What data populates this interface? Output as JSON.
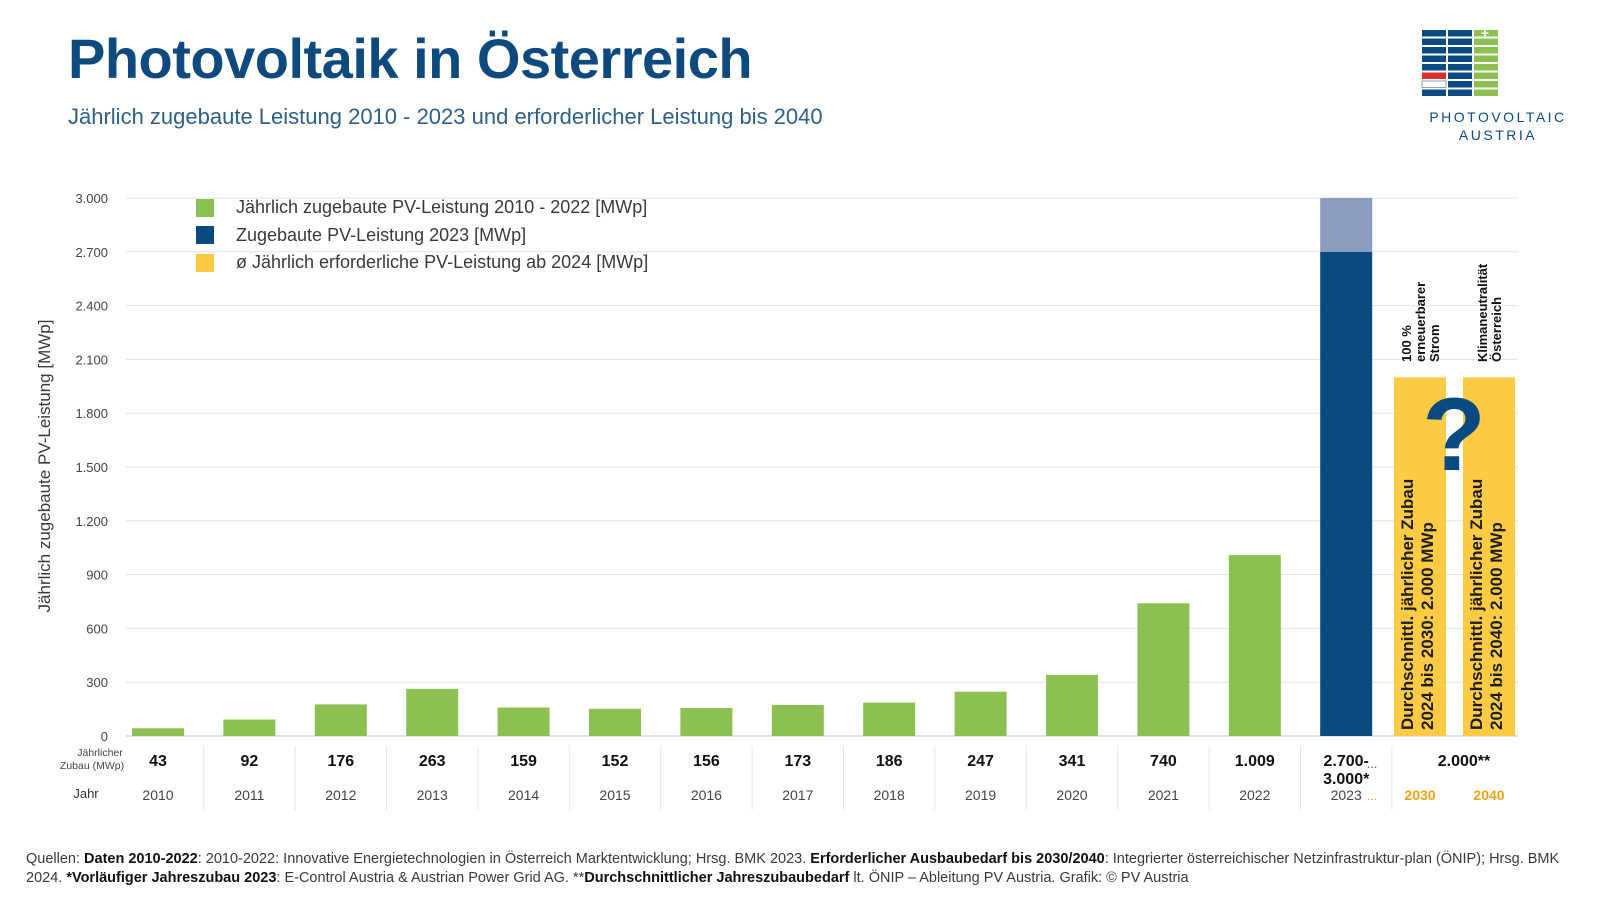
{
  "header": {
    "title": "Photovoltaik in Österreich",
    "subtitle": "Jährlich zugebaute Leistung 2010 - 2023 und erforderlicher Leistung bis 2040"
  },
  "logo": {
    "line1": "PHOTOVOLTAIC",
    "line2": "AUSTRIA"
  },
  "colors": {
    "green": "#8cc152",
    "navy": "#0b4a80",
    "navy_light": "#8a9dc0",
    "yellow": "#ffcb45",
    "grid": "#e3e3e3",
    "highlight_year": "#e8a317"
  },
  "legend": [
    {
      "label": "Jährlich zugebaute PV-Leistung 2010 - 2022 [MWp]",
      "color": "#8cc152"
    },
    {
      "label": "Zugebaute PV-Leistung 2023 [MWp]",
      "color": "#0b4a80"
    },
    {
      "label": "ø Jährlich erforderliche PV-Leistung ab 2024 [MWp]",
      "color": "#ffcb45"
    }
  ],
  "chart_data": {
    "type": "bar",
    "ylabel": "Jährlich zugebaute PV-Leistung [MWp]",
    "ylim": [
      0,
      3000
    ],
    "yticks": [
      0,
      300,
      600,
      900,
      1200,
      1500,
      1800,
      2100,
      2400,
      2700,
      3000
    ],
    "ytick_labels": [
      "0",
      "300",
      "600",
      "900",
      "1.200",
      "1.500",
      "1.800",
      "2.100",
      "2.400",
      "2.700",
      "3.000"
    ],
    "row_label_zubau": [
      "Jährlicher",
      "Zubau (MWp)"
    ],
    "row_label_jahr": "Jahr",
    "categories": [
      "2010",
      "2011",
      "2012",
      "2013",
      "2014",
      "2015",
      "2016",
      "2017",
      "2018",
      "2019",
      "2020",
      "2021",
      "2022"
    ],
    "values": [
      43,
      92,
      176,
      263,
      159,
      152,
      156,
      173,
      186,
      247,
      341,
      740,
      1009
    ],
    "value_labels": [
      "43",
      "92",
      "176",
      "263",
      "159",
      "152",
      "156",
      "173",
      "186",
      "247",
      "341",
      "740",
      "1.009"
    ],
    "bar_2023": {
      "category": "2023",
      "low": 2700,
      "high": 3000,
      "label_line1": "2.700-",
      "label_line2": "3.000*"
    },
    "ellipsis": "...",
    "required": {
      "value": 2000,
      "value_label": "2.000**",
      "bars": [
        {
          "year": "2030",
          "top_label": [
            "100 %",
            "erneuerbarer",
            "Strom"
          ],
          "inner_label": [
            "Durchschnittl. jährlicher Zubau",
            "2024 bis 2030: 2.000 MWp"
          ]
        },
        {
          "year": "2040",
          "top_label": [
            "Klimaneutralität",
            "Österreich"
          ],
          "inner_label": [
            "Durchschnittl. jährlicher Zubau",
            "2024 bis 2040: 2.000 MWp"
          ]
        }
      ],
      "question_mark": "?"
    }
  },
  "sources": {
    "s1a": "Quellen: ",
    "s1b": "Daten 2010-2022",
    "s1c": ": 2010-2022: Innovative Energietechnologien in Österreich Marktentwicklung; Hrsg. BMK 2023. ",
    "s1d": "Erforderlicher Ausbaubedarf bis 2030/2040",
    "s1e": ": Integrierter österreichischer Netzinfrastruktur-plan (ÖNIP); Hrsg. BMK 2024. ",
    "s1f": "*Vorläufiger Jahreszubau 2023",
    "s1g": ": E-Control Austria & Austrian Power Grid AG. **",
    "s1h": "Durchschnittlicher Jahreszubaubedarf",
    "s1i": " lt. ÖNIP – Ableitung PV Austria. Grafik: © PV Austria"
  }
}
